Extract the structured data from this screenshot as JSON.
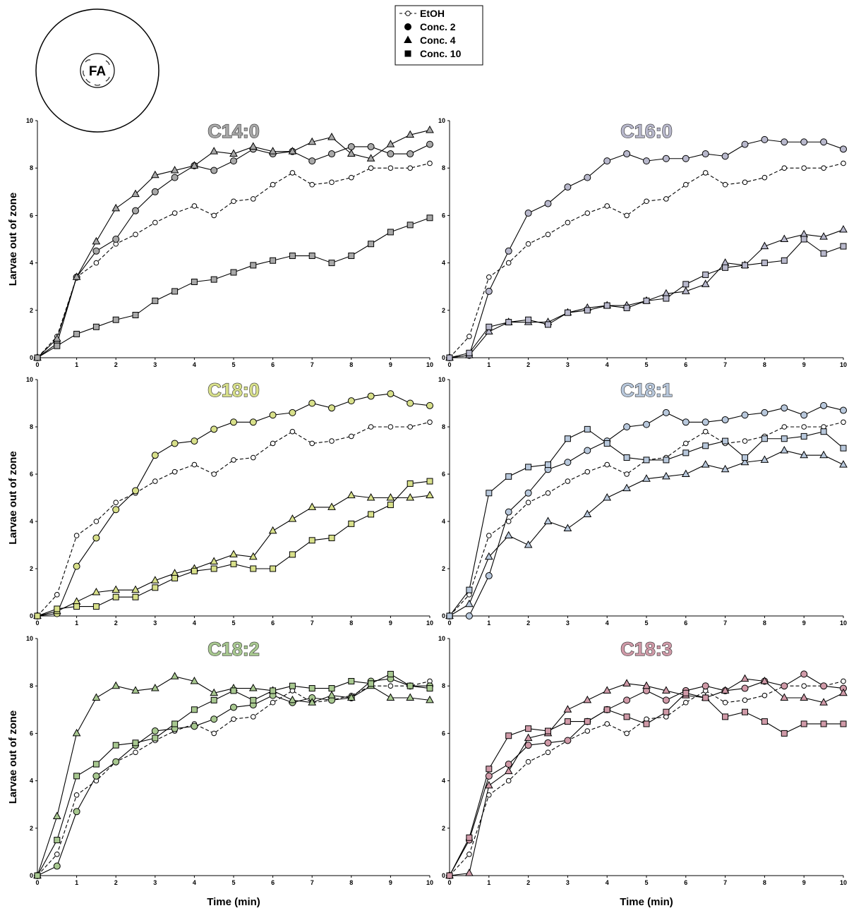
{
  "inset": {
    "label": "FA"
  },
  "chart_data": [
    {
      "type": "line",
      "title": "C14:0",
      "color": "#a8a8a8",
      "y_label": "Larvae out of zone",
      "x": [
        0,
        0.5,
        1,
        1.5,
        2,
        2.5,
        3,
        3.5,
        4,
        4.5,
        5,
        5.5,
        6,
        6.5,
        7,
        7.5,
        8,
        8.5,
        9,
        9.5,
        10
      ],
      "xlim": [
        0,
        10
      ],
      "xticks": [
        0,
        1,
        2,
        3,
        4,
        5,
        6,
        7,
        8,
        9,
        10
      ],
      "ylim": [
        0,
        10
      ],
      "yticks": [
        0,
        2,
        4,
        6,
        8,
        10
      ],
      "series": [
        {
          "name": "EtOH",
          "marker": "circle",
          "dashed": true,
          "fill": "#ffffff",
          "values": [
            0,
            0.9,
            3.4,
            4.0,
            4.8,
            5.2,
            5.7,
            6.1,
            6.4,
            6.0,
            6.6,
            6.7,
            7.3,
            7.8,
            7.3,
            7.4,
            7.6,
            8.0,
            8.0,
            8.0,
            8.2
          ]
        },
        {
          "name": "Conc. 2",
          "marker": "circle",
          "dashed": false,
          "fill": "#a8a8a8",
          "values": [
            0,
            0.6,
            3.4,
            4.5,
            5.0,
            6.2,
            7.0,
            7.6,
            8.1,
            7.9,
            8.3,
            8.8,
            8.6,
            8.7,
            8.3,
            8.6,
            8.9,
            8.9,
            8.6,
            8.6,
            9.0
          ]
        },
        {
          "name": "Conc. 4",
          "marker": "triangle",
          "dashed": false,
          "fill": "#a8a8a8",
          "values": [
            0,
            0.8,
            3.4,
            4.9,
            6.3,
            6.9,
            7.7,
            7.9,
            8.1,
            8.7,
            8.6,
            8.9,
            8.7,
            8.7,
            9.1,
            9.3,
            8.6,
            8.4,
            9.0,
            9.4,
            9.6
          ]
        },
        {
          "name": "Conc. 10",
          "marker": "square",
          "dashed": false,
          "fill": "#a8a8a8",
          "values": [
            0,
            0.5,
            1.0,
            1.3,
            1.6,
            1.8,
            2.4,
            2.8,
            3.2,
            3.3,
            3.6,
            3.9,
            4.1,
            4.3,
            4.3,
            4.0,
            4.3,
            4.8,
            5.3,
            5.6,
            5.9
          ]
        }
      ]
    },
    {
      "type": "line",
      "title": "C16:0",
      "color": "#b8b8cc",
      "x": [
        0,
        0.5,
        1,
        1.5,
        2,
        2.5,
        3,
        3.5,
        4,
        4.5,
        5,
        5.5,
        6,
        6.5,
        7,
        7.5,
        8,
        8.5,
        9,
        9.5,
        10
      ],
      "xlim": [
        0,
        10
      ],
      "xticks": [
        0,
        1,
        2,
        3,
        4,
        5,
        6,
        7,
        8,
        9,
        10
      ],
      "ylim": [
        0,
        10
      ],
      "yticks": [
        0,
        2,
        4,
        6,
        8,
        10
      ],
      "series": [
        {
          "name": "EtOH",
          "marker": "circle",
          "dashed": true,
          "fill": "#ffffff",
          "values": [
            0,
            0.9,
            3.4,
            4.0,
            4.8,
            5.2,
            5.7,
            6.1,
            6.4,
            6.0,
            6.6,
            6.7,
            7.3,
            7.8,
            7.3,
            7.4,
            7.6,
            8.0,
            8.0,
            8.0,
            8.2
          ]
        },
        {
          "name": "Conc. 2",
          "marker": "circle",
          "dashed": false,
          "fill": "#b8b8cc",
          "values": [
            0,
            0.1,
            2.8,
            4.5,
            6.1,
            6.5,
            7.2,
            7.6,
            8.3,
            8.6,
            8.3,
            8.4,
            8.4,
            8.6,
            8.5,
            9.0,
            9.2,
            9.1,
            9.1,
            9.1,
            8.8
          ]
        },
        {
          "name": "Conc. 4",
          "marker": "triangle",
          "dashed": false,
          "fill": "#b8b8cc",
          "values": [
            0,
            0.1,
            1.1,
            1.5,
            1.5,
            1.5,
            1.9,
            2.1,
            2.2,
            2.2,
            2.4,
            2.7,
            2.8,
            3.1,
            4.0,
            3.9,
            4.7,
            5.0,
            5.2,
            5.1,
            5.4
          ]
        },
        {
          "name": "Conc. 10",
          "marker": "square",
          "dashed": false,
          "fill": "#b8b8cc",
          "values": [
            0,
            0.2,
            1.3,
            1.5,
            1.6,
            1.4,
            1.9,
            2.0,
            2.2,
            2.1,
            2.4,
            2.5,
            3.1,
            3.5,
            3.8,
            3.9,
            4.0,
            4.1,
            5.0,
            4.4,
            4.7
          ]
        }
      ]
    },
    {
      "type": "line",
      "title": "C18:0",
      "color": "#d8e08a",
      "y_label": "Larvae out of zone",
      "x": [
        0,
        0.5,
        1,
        1.5,
        2,
        2.5,
        3,
        3.5,
        4,
        4.5,
        5,
        5.5,
        6,
        6.5,
        7,
        7.5,
        8,
        8.5,
        9,
        9.5,
        10
      ],
      "xlim": [
        0,
        10
      ],
      "xticks": [
        0,
        1,
        2,
        3,
        4,
        5,
        6,
        7,
        8,
        9,
        10
      ],
      "ylim": [
        0,
        10
      ],
      "yticks": [
        0,
        2,
        4,
        6,
        8,
        10
      ],
      "series": [
        {
          "name": "EtOH",
          "marker": "circle",
          "dashed": true,
          "fill": "#ffffff",
          "values": [
            0,
            0.9,
            3.4,
            4.0,
            4.8,
            5.2,
            5.7,
            6.1,
            6.4,
            6.0,
            6.6,
            6.7,
            7.3,
            7.8,
            7.3,
            7.4,
            7.6,
            8.0,
            8.0,
            8.0,
            8.2
          ]
        },
        {
          "name": "Conc. 2",
          "marker": "circle",
          "dashed": false,
          "fill": "#d8e08a",
          "values": [
            0,
            0.1,
            2.1,
            3.3,
            4.5,
            5.3,
            6.8,
            7.3,
            7.4,
            7.9,
            8.2,
            8.2,
            8.5,
            8.6,
            9.0,
            8.8,
            9.1,
            9.3,
            9.4,
            9.0,
            8.9
          ]
        },
        {
          "name": "Conc. 4",
          "marker": "triangle",
          "dashed": false,
          "fill": "#d8e08a",
          "values": [
            0,
            0.2,
            0.6,
            1.0,
            1.1,
            1.1,
            1.5,
            1.8,
            2.0,
            2.3,
            2.6,
            2.5,
            3.6,
            4.1,
            4.6,
            4.6,
            5.1,
            5.0,
            5.0,
            5.0,
            5.1
          ]
        },
        {
          "name": "Conc. 10",
          "marker": "square",
          "dashed": false,
          "fill": "#d8e08a",
          "values": [
            0,
            0.3,
            0.4,
            0.4,
            0.8,
            0.8,
            1.2,
            1.6,
            1.9,
            2.0,
            2.2,
            2.0,
            2.0,
            2.6,
            3.2,
            3.3,
            3.9,
            4.3,
            4.7,
            5.6,
            5.7
          ]
        }
      ]
    },
    {
      "type": "line",
      "title": "C18:1",
      "color": "#b8c8dc",
      "x": [
        0,
        0.5,
        1,
        1.5,
        2,
        2.5,
        3,
        3.5,
        4,
        4.5,
        5,
        5.5,
        6,
        6.5,
        7,
        7.5,
        8,
        8.5,
        9,
        9.5,
        10
      ],
      "xlim": [
        0,
        10
      ],
      "xticks": [
        0,
        1,
        2,
        3,
        4,
        5,
        6,
        7,
        8,
        9,
        10
      ],
      "ylim": [
        0,
        10
      ],
      "yticks": [
        0,
        2,
        4,
        6,
        8,
        10
      ],
      "series": [
        {
          "name": "EtOH",
          "marker": "circle",
          "dashed": true,
          "fill": "#ffffff",
          "values": [
            0,
            0.9,
            3.4,
            4.0,
            4.8,
            5.2,
            5.7,
            6.1,
            6.4,
            6.0,
            6.6,
            6.7,
            7.3,
            7.8,
            7.3,
            7.4,
            7.6,
            8.0,
            8.0,
            8.0,
            8.2
          ]
        },
        {
          "name": "Conc. 2",
          "marker": "circle",
          "dashed": false,
          "fill": "#b8c8dc",
          "values": [
            0,
            0.0,
            1.7,
            4.4,
            5.2,
            6.2,
            6.5,
            7.0,
            7.4,
            8.0,
            8.1,
            8.6,
            8.2,
            8.2,
            8.3,
            8.5,
            8.6,
            8.8,
            8.5,
            8.9,
            8.7
          ]
        },
        {
          "name": "Conc. 4",
          "marker": "triangle",
          "dashed": false,
          "fill": "#b8c8dc",
          "values": [
            0,
            0.5,
            2.5,
            3.4,
            3.0,
            4.0,
            3.7,
            4.3,
            5.0,
            5.4,
            5.8,
            5.9,
            6.0,
            6.4,
            6.2,
            6.5,
            6.6,
            7.0,
            6.8,
            6.8,
            6.4
          ]
        },
        {
          "name": "Conc. 10",
          "marker": "square",
          "dashed": false,
          "fill": "#b8c8dc",
          "values": [
            0,
            1.1,
            5.2,
            5.9,
            6.3,
            6.4,
            7.5,
            7.9,
            7.3,
            6.7,
            6.6,
            6.6,
            6.9,
            7.2,
            7.4,
            6.7,
            7.5,
            7.5,
            7.6,
            7.8,
            7.1
          ]
        }
      ]
    },
    {
      "type": "line",
      "title": "C18:2",
      "color": "#a8c890",
      "y_label": "Larvae out of zone",
      "x_label": "Time (min)",
      "x": [
        0,
        0.5,
        1,
        1.5,
        2,
        2.5,
        3,
        3.5,
        4,
        4.5,
        5,
        5.5,
        6,
        6.5,
        7,
        7.5,
        8,
        8.5,
        9,
        9.5,
        10
      ],
      "xlim": [
        0,
        10
      ],
      "xticks": [
        0,
        1,
        2,
        3,
        4,
        5,
        6,
        7,
        8,
        9,
        10
      ],
      "ylim": [
        0,
        10
      ],
      "yticks": [
        0,
        2,
        4,
        6,
        8,
        10
      ],
      "series": [
        {
          "name": "EtOH",
          "marker": "circle",
          "dashed": true,
          "fill": "#ffffff",
          "values": [
            0,
            0.9,
            3.4,
            4.0,
            4.8,
            5.2,
            5.7,
            6.1,
            6.4,
            6.0,
            6.6,
            6.7,
            7.3,
            7.8,
            7.3,
            7.4,
            7.6,
            8.0,
            8.0,
            8.0,
            8.2
          ]
        },
        {
          "name": "Conc. 2",
          "marker": "circle",
          "dashed": false,
          "fill": "#a8c890",
          "values": [
            0,
            0.4,
            2.7,
            4.2,
            4.8,
            5.5,
            6.1,
            6.2,
            6.3,
            6.6,
            7.1,
            7.2,
            7.6,
            7.3,
            7.5,
            7.4,
            7.5,
            8.2,
            8.3,
            8.0,
            8.0
          ]
        },
        {
          "name": "Conc. 4",
          "marker": "triangle",
          "dashed": false,
          "fill": "#a8c890",
          "values": [
            0,
            2.5,
            6.0,
            7.5,
            8.0,
            7.8,
            7.9,
            8.4,
            8.2,
            7.7,
            7.9,
            7.9,
            7.8,
            7.4,
            7.3,
            7.6,
            7.5,
            8.0,
            7.5,
            7.5,
            7.4
          ]
        },
        {
          "name": "Conc. 10",
          "marker": "square",
          "dashed": false,
          "fill": "#a8c890",
          "values": [
            0,
            1.5,
            4.2,
            4.7,
            5.5,
            5.6,
            5.8,
            6.4,
            7.0,
            7.4,
            7.8,
            7.4,
            7.8,
            8.0,
            7.9,
            7.9,
            8.2,
            8.1,
            8.5,
            8.0,
            7.9
          ]
        }
      ]
    },
    {
      "type": "line",
      "title": "C18:3",
      "color": "#d09aa8",
      "x_label": "Time (min)",
      "x": [
        0,
        0.5,
        1,
        1.5,
        2,
        2.5,
        3,
        3.5,
        4,
        4.5,
        5,
        5.5,
        6,
        6.5,
        7,
        7.5,
        8,
        8.5,
        9,
        9.5,
        10
      ],
      "xlim": [
        0,
        10
      ],
      "xticks": [
        0,
        1,
        2,
        3,
        4,
        5,
        6,
        7,
        8,
        9,
        10
      ],
      "ylim": [
        0,
        10
      ],
      "yticks": [
        0,
        2,
        4,
        6,
        8,
        10
      ],
      "series": [
        {
          "name": "EtOH",
          "marker": "circle",
          "dashed": true,
          "fill": "#ffffff",
          "values": [
            0,
            0.9,
            3.4,
            4.0,
            4.8,
            5.2,
            5.7,
            6.1,
            6.4,
            6.0,
            6.6,
            6.7,
            7.3,
            7.8,
            7.3,
            7.4,
            7.6,
            8.0,
            8.0,
            8.0,
            8.2
          ]
        },
        {
          "name": "Conc. 2",
          "marker": "circle",
          "dashed": false,
          "fill": "#d09aa8",
          "values": [
            0,
            1.5,
            4.2,
            4.7,
            5.5,
            5.6,
            5.7,
            6.5,
            7.0,
            7.4,
            7.8,
            7.4,
            7.8,
            8.0,
            7.8,
            7.9,
            8.2,
            8.0,
            8.5,
            8.0,
            7.9
          ]
        },
        {
          "name": "Conc. 4",
          "marker": "triangle",
          "dashed": false,
          "fill": "#d09aa8",
          "values": [
            0,
            0.1,
            3.8,
            4.4,
            5.8,
            6.0,
            7.0,
            7.4,
            7.8,
            8.1,
            8.0,
            7.8,
            7.6,
            7.5,
            7.8,
            8.3,
            8.2,
            7.5,
            7.5,
            7.3,
            7.7
          ]
        },
        {
          "name": "Conc. 10",
          "marker": "square",
          "dashed": false,
          "fill": "#d09aa8",
          "values": [
            0,
            1.6,
            4.5,
            5.9,
            6.2,
            6.1,
            6.5,
            6.5,
            7.0,
            6.7,
            6.4,
            6.9,
            7.7,
            7.5,
            6.7,
            6.9,
            6.5,
            6.0,
            6.4,
            6.4,
            6.4
          ]
        }
      ]
    }
  ]
}
